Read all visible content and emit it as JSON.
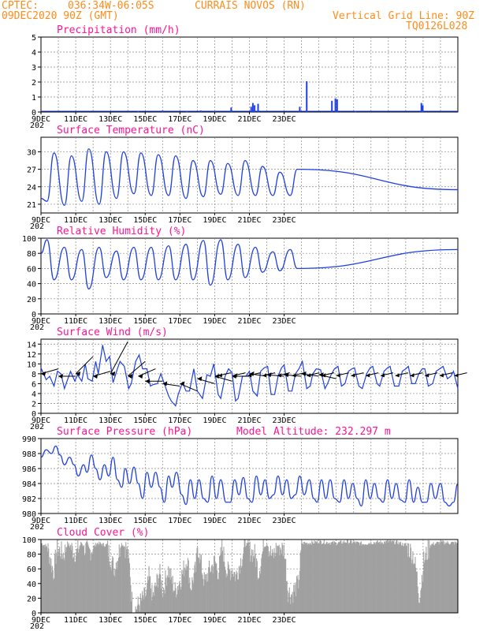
{
  "header": {
    "source": "CPTEC:",
    "coords": "036:34W-06:05S",
    "location": "CURRAIS NOVOS (RN)",
    "datetime": "09DEC2020 90Z (GMT)",
    "grid_line": "Vertical Grid Line: 90Z",
    "model_code": "TQ0126L028"
  },
  "colors": {
    "header": "#ff8c1a",
    "title": "#ff1493",
    "series": "#2040e0",
    "cloud": "#a0a0a0",
    "grid": "#888888"
  },
  "model_altitude": "Model Altitude: 232.297 m",
  "x_tick_labels": [
    "9DEC",
    "11DEC",
    "13DEC",
    "15DEC",
    "17DEC",
    "19DEC",
    "21DEC",
    "23DEC"
  ],
  "year_stub": "202",
  "chart_data": [
    {
      "type": "bar",
      "title": "Precipitation (mm/h)",
      "x_unit": "days since 9DEC 00Z",
      "ylim": [
        0,
        5
      ],
      "yticks": [
        0,
        1,
        2,
        3,
        4,
        5
      ],
      "points": [
        [
          5.6,
          0.05
        ],
        [
          7.0,
          0.1
        ],
        [
          8.4,
          0.05
        ],
        [
          9.2,
          0.1
        ],
        [
          10.0,
          0.05
        ],
        [
          10.95,
          0.3
        ],
        [
          12.1,
          0.35
        ],
        [
          12.2,
          0.6
        ],
        [
          12.3,
          0.45
        ],
        [
          12.5,
          0.55
        ],
        [
          14.9,
          0.35
        ],
        [
          15.3,
          2.05
        ],
        [
          16.75,
          0.75
        ],
        [
          16.95,
          0.9
        ],
        [
          17.05,
          0.85
        ],
        [
          18.1,
          0.05
        ],
        [
          21.9,
          0.6
        ],
        [
          21.95,
          0.35
        ],
        [
          21.98,
          0.45
        ]
      ]
    },
    {
      "type": "line",
      "title": "Surface Temperature (nC)",
      "ylim": [
        19.5,
        32.5
      ],
      "yticks": [
        21,
        24,
        27,
        30
      ],
      "t_min": [
        21.5,
        20.8,
        21.5,
        21.0,
        22.0,
        22.8,
        22.5,
        22.5,
        22.0,
        22.3,
        22.7,
        22.5,
        22.5,
        22.5,
        22.5
      ],
      "t_max": [
        29.8,
        29.3,
        30.5,
        30.0,
        30.0,
        29.8,
        29.5,
        29.3,
        28.5,
        28.5,
        28.0,
        28.5,
        27.5,
        26.5,
        27.0
      ]
    },
    {
      "type": "line",
      "title": "Relative Humidity (%)",
      "ylim": [
        0,
        100
      ],
      "yticks": [
        0,
        20,
        40,
        60,
        80,
        100
      ],
      "rh_min": [
        45,
        45,
        33,
        48,
        45,
        45,
        45,
        45,
        45,
        38,
        45,
        48,
        55,
        57,
        60
      ],
      "rh_max": [
        98,
        88,
        85,
        88,
        83,
        88,
        88,
        90,
        92,
        97,
        98,
        92,
        88,
        82,
        85
      ]
    },
    {
      "type": "line",
      "title": "Surface Wind (m/s)",
      "ylim": [
        0,
        15
      ],
      "yticks": [
        0,
        2,
        4,
        6,
        8,
        10,
        12,
        14
      ],
      "speed": [
        [
          0.0,
          9.2
        ],
        [
          0.3,
          6.8
        ],
        [
          0.5,
          7.5
        ],
        [
          0.75,
          5.5
        ],
        [
          0.95,
          8.5
        ],
        [
          1.15,
          8.0
        ],
        [
          1.35,
          5.0
        ],
        [
          1.55,
          7.0
        ],
        [
          1.7,
          8.5
        ],
        [
          1.95,
          6.5
        ],
        [
          2.1,
          7.8
        ],
        [
          2.35,
          6.5
        ],
        [
          2.55,
          10.0
        ],
        [
          2.7,
          7.0
        ],
        [
          2.95,
          6.5
        ],
        [
          3.15,
          10.5
        ],
        [
          3.3,
          8.0
        ],
        [
          3.55,
          13.8
        ],
        [
          3.75,
          10.5
        ],
        [
          3.95,
          11.5
        ],
        [
          4.15,
          6.2
        ],
        [
          4.4,
          9.0
        ],
        [
          4.55,
          10.5
        ],
        [
          4.8,
          9.5
        ],
        [
          5.05,
          5.0
        ],
        [
          5.2,
          6.0
        ],
        [
          5.45,
          10.5
        ],
        [
          5.65,
          11.8
        ],
        [
          5.85,
          9.0
        ],
        [
          6.1,
          9.0
        ],
        [
          6.3,
          5.5
        ],
        [
          6.45,
          5.8
        ],
        [
          6.7,
          6.0
        ],
        [
          6.9,
          8.0
        ],
        [
          7.1,
          6.0
        ],
        [
          7.35,
          3.5
        ],
        [
          7.5,
          2.5
        ],
        [
          7.75,
          1.5
        ],
        [
          7.9,
          3.8
        ],
        [
          8.15,
          6.2
        ],
        [
          8.35,
          4.5
        ],
        [
          8.55,
          4.5
        ],
        [
          8.8,
          9.0
        ],
        [
          9.0,
          4.5
        ],
        [
          9.3,
          3.0
        ],
        [
          9.55,
          7.8
        ],
        [
          9.75,
          7.5
        ],
        [
          9.95,
          10.0
        ],
        [
          10.2,
          3.8
        ],
        [
          10.35,
          3.0
        ],
        [
          10.6,
          7.5
        ],
        [
          10.8,
          9.0
        ],
        [
          11.0,
          8.2
        ],
        [
          11.2,
          2.5
        ],
        [
          11.35,
          3.0
        ],
        [
          11.6,
          7.5
        ],
        [
          11.8,
          7.5
        ],
        [
          12.0,
          8.5
        ],
        [
          12.2,
          4.5
        ],
        [
          12.45,
          3.5
        ],
        [
          12.65,
          8.5
        ],
        [
          12.85,
          9.2
        ],
        [
          13.05,
          9.5
        ],
        [
          13.25,
          3.8
        ],
        [
          13.45,
          3.8
        ],
        [
          13.65,
          7.5
        ],
        [
          13.85,
          9.2
        ],
        [
          14.0,
          9.8
        ],
        [
          14.25,
          4.5
        ],
        [
          14.45,
          4.5
        ],
        [
          14.65,
          8.0
        ],
        [
          14.85,
          9.0
        ],
        [
          15.05,
          10.5
        ],
        [
          15.3,
          5.0
        ],
        [
          15.5,
          5.5
        ],
        [
          15.65,
          8.0
        ],
        [
          15.85,
          9.0
        ],
        [
          16.1,
          8.8
        ],
        [
          16.35,
          5.0
        ],
        [
          16.5,
          6.0
        ],
        [
          16.7,
          7.8
        ],
        [
          16.9,
          9.0
        ],
        [
          17.1,
          9.5
        ],
        [
          17.3,
          5.5
        ],
        [
          17.5,
          6.0
        ],
        [
          17.7,
          8.5
        ],
        [
          17.9,
          9.0
        ],
        [
          18.05,
          9.2
        ],
        [
          18.3,
          5.5
        ],
        [
          18.5,
          5.0
        ],
        [
          18.75,
          8.0
        ],
        [
          18.95,
          9.2
        ],
        [
          19.1,
          9.5
        ],
        [
          19.35,
          6.0
        ],
        [
          19.5,
          5.5
        ],
        [
          19.75,
          8.5
        ],
        [
          19.95,
          9.2
        ],
        [
          20.1,
          9.5
        ],
        [
          20.35,
          5.5
        ],
        [
          20.6,
          5.5
        ],
        [
          20.8,
          8.5
        ],
        [
          21.0,
          9.0
        ],
        [
          21.15,
          9.5
        ],
        [
          21.35,
          6.0
        ],
        [
          21.55,
          6.0
        ],
        [
          21.75,
          8.0
        ],
        [
          21.95,
          9.0
        ],
        [
          22.1,
          9.0
        ],
        [
          22.3,
          5.5
        ],
        [
          22.55,
          6.0
        ],
        [
          22.75,
          8.5
        ],
        [
          22.95,
          9.0
        ],
        [
          23.15,
          9.5
        ],
        [
          23.4,
          7.0
        ],
        [
          23.6,
          7.5
        ],
        [
          23.75,
          8.5
        ],
        [
          24.0,
          5.0
        ]
      ],
      "wind_barbs": [
        [
          0.0,
          9.0,
          8.0
        ],
        [
          1.0,
          7.5,
          7.5
        ],
        [
          2.0,
          11.5,
          8.0
        ],
        [
          3.0,
          8.5,
          7.5
        ],
        [
          4.0,
          14.5,
          8.0
        ],
        [
          5.0,
          10.5,
          7.5
        ],
        [
          5.6,
          9.0,
          7.5
        ],
        [
          6.0,
          6.5,
          6.5
        ],
        [
          7.0,
          5.5,
          6.0
        ],
        [
          8.0,
          4.5,
          6.0
        ],
        [
          9.0,
          6.0,
          7.0
        ],
        [
          10.0,
          6.5,
          7.5
        ],
        [
          11.0,
          7.5,
          7.5
        ],
        [
          12.0,
          7.5,
          8.0
        ],
        [
          13.0,
          7.5,
          7.8
        ],
        [
          14.0,
          7.5,
          7.8
        ],
        [
          15.0,
          7.5,
          8.0
        ],
        [
          16.0,
          7.0,
          7.8
        ]
      ]
    },
    {
      "type": "line",
      "title": "Surface Pressure (hPa)",
      "ylim": [
        980,
        990
      ],
      "yticks": [
        980,
        982,
        984,
        986,
        988,
        990
      ],
      "points": [
        [
          0.0,
          987.5
        ],
        [
          0.3,
          988.5
        ],
        [
          0.6,
          988.0
        ],
        [
          0.85,
          989.0
        ],
        [
          1.1,
          987.8
        ],
        [
          1.35,
          986.5
        ],
        [
          1.65,
          987.5
        ],
        [
          1.9,
          986.5
        ],
        [
          2.15,
          985.0
        ],
        [
          2.45,
          986.5
        ],
        [
          2.65,
          985.5
        ],
        [
          2.9,
          987.8
        ],
        [
          3.15,
          986.0
        ],
        [
          3.4,
          984.5
        ],
        [
          3.65,
          986.5
        ],
        [
          3.9,
          985.0
        ],
        [
          4.15,
          987.5
        ],
        [
          4.4,
          984.5
        ],
        [
          4.65,
          983.5
        ],
        [
          4.85,
          986.0
        ],
        [
          5.1,
          984.0
        ],
        [
          5.35,
          986.2
        ],
        [
          5.6,
          984.0
        ],
        [
          5.85,
          982.0
        ],
        [
          6.1,
          985.5
        ],
        [
          6.35,
          983.5
        ],
        [
          6.6,
          985.5
        ],
        [
          6.85,
          983.5
        ],
        [
          7.1,
          981.5
        ],
        [
          7.35,
          985.0
        ],
        [
          7.55,
          983.5
        ],
        [
          7.8,
          985.5
        ],
        [
          8.1,
          982.5
        ],
        [
          8.35,
          981.2
        ],
        [
          8.6,
          984.5
        ],
        [
          8.85,
          982.0
        ],
        [
          9.1,
          984.5
        ],
        [
          9.35,
          982.0
        ],
        [
          9.6,
          981.5
        ],
        [
          9.85,
          985.0
        ],
        [
          10.1,
          982.0
        ],
        [
          10.35,
          984.5
        ],
        [
          10.65,
          981.5
        ],
        [
          10.9,
          981.5
        ],
        [
          11.15,
          984.5
        ],
        [
          11.4,
          982.5
        ],
        [
          11.65,
          984.8
        ],
        [
          11.9,
          982.0
        ],
        [
          12.15,
          981.5
        ],
        [
          12.4,
          985.0
        ],
        [
          12.65,
          982.5
        ],
        [
          12.9,
          984.5
        ],
        [
          13.15,
          982.0
        ],
        [
          13.4,
          982.5
        ],
        [
          13.65,
          985.0
        ],
        [
          13.9,
          982.5
        ],
        [
          14.15,
          984.5
        ],
        [
          14.4,
          982.0
        ],
        [
          14.65,
          982.5
        ],
        [
          14.9,
          985.0
        ],
        [
          15.15,
          982.5
        ],
        [
          15.45,
          984.5
        ],
        [
          15.7,
          982.0
        ],
        [
          15.9,
          981.5
        ],
        [
          16.15,
          984.5
        ],
        [
          16.4,
          982.0
        ],
        [
          16.65,
          984.5
        ],
        [
          16.9,
          982.0
        ],
        [
          17.2,
          981.5
        ],
        [
          17.45,
          984.5
        ],
        [
          17.7,
          982.0
        ],
        [
          17.95,
          984.0
        ],
        [
          18.2,
          982.0
        ],
        [
          18.45,
          981.0
        ],
        [
          18.7,
          984.5
        ],
        [
          18.95,
          982.0
        ],
        [
          19.2,
          984.0
        ],
        [
          19.45,
          982.0
        ],
        [
          19.7,
          981.5
        ],
        [
          19.95,
          984.5
        ],
        [
          20.2,
          982.0
        ],
        [
          20.45,
          984.0
        ],
        [
          20.7,
          981.8
        ],
        [
          20.95,
          981.5
        ],
        [
          21.2,
          984.5
        ],
        [
          21.45,
          981.5
        ],
        [
          21.7,
          983.5
        ],
        [
          21.95,
          981.5
        ],
        [
          22.2,
          981.5
        ],
        [
          22.45,
          984.0
        ],
        [
          22.7,
          982.0
        ],
        [
          23.0,
          984.0
        ],
        [
          23.25,
          981.5
        ],
        [
          23.5,
          981.0
        ],
        [
          23.75,
          981.5
        ],
        [
          24.0,
          984.0
        ]
      ]
    },
    {
      "type": "bar",
      "title": "Cloud Cover (%)",
      "ylim": [
        0,
        100
      ],
      "yticks": [
        0,
        20,
        40,
        60,
        80,
        100
      ],
      "cover": [
        [
          0.0,
          95
        ],
        [
          0.35,
          90
        ],
        [
          0.7,
          55
        ],
        [
          0.9,
          88
        ],
        [
          1.3,
          80
        ],
        [
          1.5,
          95
        ],
        [
          2.0,
          80
        ],
        [
          2.3,
          96
        ],
        [
          2.7,
          82
        ],
        [
          3.2,
          95
        ],
        [
          3.75,
          92
        ],
        [
          4.2,
          60
        ],
        [
          4.6,
          95
        ],
        [
          4.9,
          88
        ],
        [
          5.1,
          60
        ],
        [
          5.2,
          20
        ],
        [
          5.3,
          2
        ],
        [
          6.05,
          25
        ],
        [
          6.2,
          50
        ],
        [
          6.4,
          20
        ],
        [
          6.8,
          55
        ],
        [
          7.0,
          30
        ],
        [
          7.3,
          60
        ],
        [
          7.7,
          30
        ],
        [
          8.0,
          45
        ],
        [
          8.4,
          75
        ],
        [
          8.6,
          35
        ],
        [
          8.9,
          60
        ],
        [
          9.0,
          92
        ],
        [
          9.4,
          40
        ],
        [
          9.6,
          55
        ],
        [
          10.0,
          70
        ],
        [
          10.2,
          55
        ],
        [
          10.4,
          90
        ],
        [
          10.7,
          55
        ],
        [
          11.0,
          60
        ],
        [
          11.2,
          50
        ],
        [
          11.4,
          65
        ],
        [
          11.8,
          95
        ],
        [
          12.0,
          85
        ],
        [
          12.3,
          80
        ],
        [
          12.5,
          55
        ],
        [
          12.8,
          90
        ],
        [
          13.0,
          95
        ],
        [
          13.3,
          75
        ],
        [
          13.6,
          92
        ],
        [
          14.0,
          85
        ],
        [
          14.2,
          30
        ],
        [
          14.4,
          25
        ],
        [
          14.8,
          40
        ],
        [
          15.0,
          95
        ],
        [
          15.3,
          95
        ],
        [
          16.0,
          97
        ],
        [
          17.0,
          95
        ],
        [
          17.5,
          97
        ],
        [
          18.0,
          96
        ],
        [
          18.5,
          94
        ],
        [
          19.0,
          96
        ],
        [
          19.5,
          96
        ],
        [
          20.0,
          97
        ],
        [
          20.5,
          96
        ],
        [
          21.0,
          92
        ],
        [
          21.4,
          80
        ],
        [
          21.6,
          55
        ],
        [
          21.75,
          22
        ],
        [
          21.85,
          35
        ],
        [
          22.0,
          70
        ],
        [
          22.4,
          93
        ],
        [
          23.0,
          96
        ],
        [
          24.0,
          95
        ]
      ]
    }
  ]
}
